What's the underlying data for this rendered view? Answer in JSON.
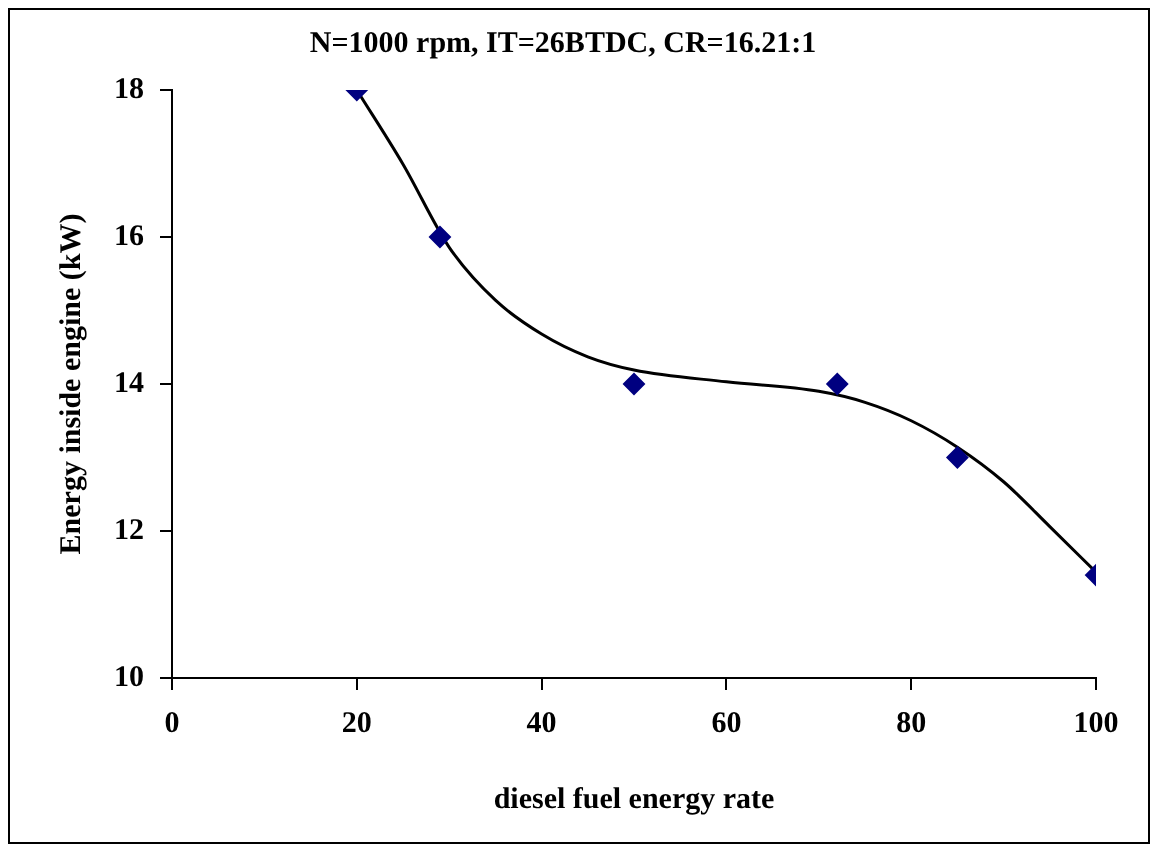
{
  "chart_data": {
    "type": "scatter",
    "title": "N=1000 rpm, IT=26BTDC, CR=16.21:1",
    "xlabel": "diesel fuel energy rate",
    "ylabel": "Energy inside engine (kW)",
    "xlim": [
      0,
      100
    ],
    "xticks": [
      0,
      20,
      40,
      60,
      80,
      100
    ],
    "ylim": [
      10,
      18
    ],
    "yticks": [
      10,
      12,
      14,
      16,
      18
    ],
    "grid": false,
    "legend": false,
    "series": [
      {
        "type": "scatter",
        "color": "#000080",
        "marker": "diamond",
        "x": [
          20,
          29,
          50,
          72,
          85,
          100
        ],
        "values": [
          18,
          16,
          14,
          14,
          13,
          11.4
        ]
      },
      {
        "type": "line",
        "color": "#000000",
        "marker": "none",
        "x": [
          20,
          25,
          30,
          35,
          40,
          45,
          50,
          60,
          70,
          75,
          80,
          85,
          90,
          95,
          100
        ],
        "values": [
          18,
          16.99,
          15.86,
          15.14,
          14.68,
          14.37,
          14.19,
          14.03,
          13.9,
          13.75,
          13.5,
          13.14,
          12.67,
          12.06,
          11.44
        ]
      }
    ]
  }
}
